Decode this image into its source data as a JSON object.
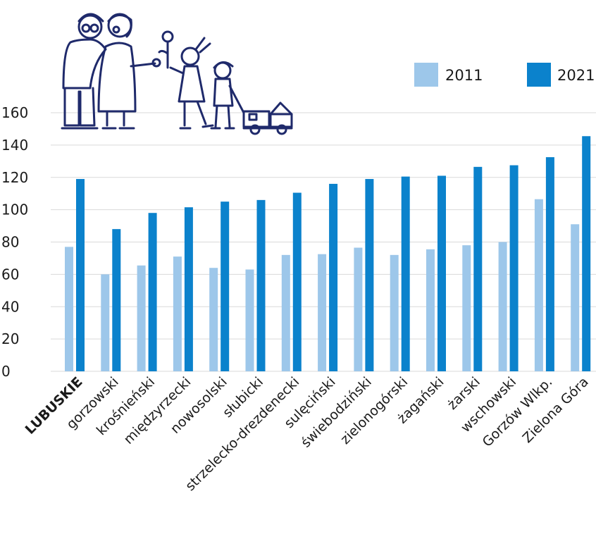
{
  "chart_data": {
    "type": "bar",
    "categories": [
      "LUBUSKIE",
      "gorzowski",
      "krośnieński",
      "międzyrzecki",
      "nowosolski",
      "słubicki",
      "strzelecko-drezdenecki",
      "sulęciński",
      "świebodziński",
      "zielonogórski",
      "żagański",
      "żarski",
      "wschowski",
      "Gorzów Wlkp.",
      "Zielona Góra"
    ],
    "bold_categories": [
      "LUBUSKIE"
    ],
    "series": [
      {
        "name": "2011",
        "color": "#9dc7ea",
        "values": [
          77,
          60,
          65.5,
          71,
          64,
          63,
          72,
          72.5,
          76.5,
          72,
          75.5,
          78,
          80,
          106.5,
          91
        ]
      },
      {
        "name": "2021",
        "color": "#0b82cc",
        "values": [
          119,
          88,
          98,
          101.5,
          105,
          106,
          110.5,
          116,
          119,
          120.5,
          121,
          126.5,
          127.5,
          132.5,
          145.5
        ]
      }
    ],
    "ylim": [
      0,
      160
    ],
    "yticks": [
      0,
      20,
      40,
      60,
      80,
      100,
      120,
      140,
      160
    ],
    "grid": true,
    "legend_position": "top-right",
    "decoration": "family-illustration-icon"
  }
}
